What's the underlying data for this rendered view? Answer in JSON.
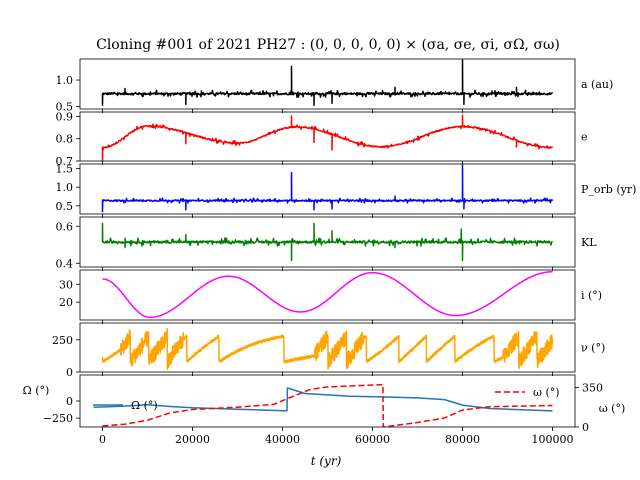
{
  "title": "Cloning #001 of 2021 PH27 : (0, 0, 0, 0, 0) × (σa, σe, σi, σΩ, σω)",
  "xlabel": "t (yr)",
  "x_ticks": [
    "0",
    "20000",
    "40000",
    "60000",
    "80000",
    "100000"
  ],
  "x_tick_values": [
    0,
    20000,
    40000,
    60000,
    80000,
    100000
  ],
  "chart_data": [
    {
      "type": "line",
      "ylabel": "a (au)",
      "color": "#000000",
      "xlim": [
        -5000,
        105000
      ],
      "ylim": [
        0.45,
        1.4
      ],
      "y_ticks": [
        "0.5",
        "1.0"
      ],
      "y_tick_values": [
        0.5,
        1.0
      ],
      "baseline": 0.74,
      "noise": 0.03,
      "spikes": [
        [
          0,
          -0.22
        ],
        [
          5000,
          0.1
        ],
        [
          18500,
          -0.2
        ],
        [
          42000,
          0.52
        ],
        [
          47000,
          -0.22
        ],
        [
          51000,
          -0.18
        ],
        [
          65000,
          0.12
        ],
        [
          80000,
          0.64
        ],
        [
          80300,
          -0.2
        ],
        [
          92000,
          0.12
        ]
      ]
    },
    {
      "type": "line",
      "ylabel": "e",
      "color": "#ff0000",
      "xlim": [
        -5000,
        105000
      ],
      "ylim": [
        0.7,
        0.92
      ],
      "y_ticks": [
        "0.7",
        "0.8",
        "0.9"
      ],
      "y_tick_values": [
        0.7,
        0.8,
        0.9
      ],
      "x": [
        0,
        10000,
        30000,
        43000,
        62000,
        80000,
        100000
      ],
      "y": [
        0.76,
        0.857,
        0.78,
        0.853,
        0.764,
        0.855,
        0.76
      ],
      "noise": 0.005,
      "spikes": [
        [
          0,
          -0.06
        ],
        [
          18500,
          -0.05
        ],
        [
          42000,
          0.05
        ],
        [
          47000,
          -0.06
        ],
        [
          51000,
          -0.07
        ],
        [
          80000,
          0.05
        ],
        [
          92000,
          -0.03
        ]
      ]
    },
    {
      "type": "line",
      "ylabel": "P_orb (yr)",
      "color": "#0000ff",
      "xlim": [
        -5000,
        105000
      ],
      "ylim": [
        0.28,
        1.62
      ],
      "y_ticks": [
        "0.5",
        "1.0",
        "1.5"
      ],
      "y_tick_values": [
        0.5,
        1.0,
        1.5
      ],
      "baseline": 0.64,
      "noise": 0.03,
      "spikes": [
        [
          0,
          -0.3
        ],
        [
          18500,
          -0.25
        ],
        [
          42000,
          0.75
        ],
        [
          47000,
          -0.25
        ],
        [
          51000,
          -0.22
        ],
        [
          65000,
          0.12
        ],
        [
          80000,
          0.95
        ],
        [
          80300,
          -0.22
        ]
      ]
    },
    {
      "type": "line",
      "ylabel": "KL",
      "color": "#008000",
      "xlim": [
        -5000,
        105000
      ],
      "ylim": [
        0.38,
        0.65
      ],
      "y_ticks": [
        "0.4",
        "0.6"
      ],
      "y_tick_values": [
        0.4,
        0.6
      ],
      "baseline": 0.515,
      "noise": 0.01,
      "spikes": [
        [
          0,
          0.1
        ],
        [
          5000,
          -0.03
        ],
        [
          18500,
          0.04
        ],
        [
          42000,
          -0.1
        ],
        [
          47000,
          0.1
        ],
        [
          51000,
          0.06
        ],
        [
          65000,
          -0.03
        ],
        [
          80000,
          -0.1
        ],
        [
          79700,
          0.07
        ]
      ]
    },
    {
      "type": "line",
      "ylabel": "i (°)",
      "color": "#ff00ff",
      "xlim": [
        -5000,
        105000
      ],
      "ylim": [
        10,
        38
      ],
      "y_ticks": [
        "20",
        "30"
      ],
      "y_tick_values": [
        20,
        30
      ],
      "x": [
        0,
        10500,
        28000,
        44000,
        60000,
        78500,
        100000
      ],
      "y": [
        33,
        11.5,
        34.5,
        14.5,
        36.5,
        12.5,
        37
      ]
    },
    {
      "type": "line",
      "ylabel": "ν (°)",
      "color": "#ffa500",
      "xlim": [
        -5000,
        105000
      ],
      "ylim": [
        0,
        380
      ],
      "y_ticks": [
        "0",
        "250"
      ],
      "y_tick_values": [
        0,
        250
      ]
    },
    {
      "type": "line",
      "ylabel": "Ω (°)",
      "right_ylabel": "ω (°)",
      "xlim": [
        -5000,
        105000
      ],
      "ylim": [
        -380,
        380
      ],
      "y_ticks": [
        "−250",
        "0"
      ],
      "y_tick_values": [
        -250,
        0
      ],
      "right_ylim": [
        0,
        460
      ],
      "right_ticks": [
        "0",
        "350"
      ],
      "right_tick_values": [
        0,
        350
      ],
      "series": [
        {
          "name": "Ω (°)",
          "color": "#1f77b4",
          "style": "solid",
          "x": [
            -2000,
            5000,
            10000,
            15000,
            20000,
            30000,
            41000,
            41100,
            45000,
            55000,
            62000,
            70000,
            76000,
            80000,
            86000,
            100000
          ],
          "y": [
            -90,
            -75,
            -55,
            -80,
            -100,
            -120,
            -145,
            190,
            110,
            70,
            60,
            45,
            20,
            -60,
            -110,
            -145
          ]
        },
        {
          "name": "ω (°)",
          "color": "#ff0000",
          "style": "dashed",
          "axis": "right",
          "x": [
            0,
            5000,
            10000,
            15000,
            20000,
            30000,
            38000,
            42000,
            46000,
            50000,
            62300,
            62400,
            70000,
            76000,
            80000,
            86000,
            100000
          ],
          "y": [
            10,
            25,
            60,
            125,
            155,
            175,
            200,
            265,
            330,
            355,
            375,
            0,
            40,
            80,
            150,
            180,
            190
          ]
        }
      ]
    }
  ]
}
